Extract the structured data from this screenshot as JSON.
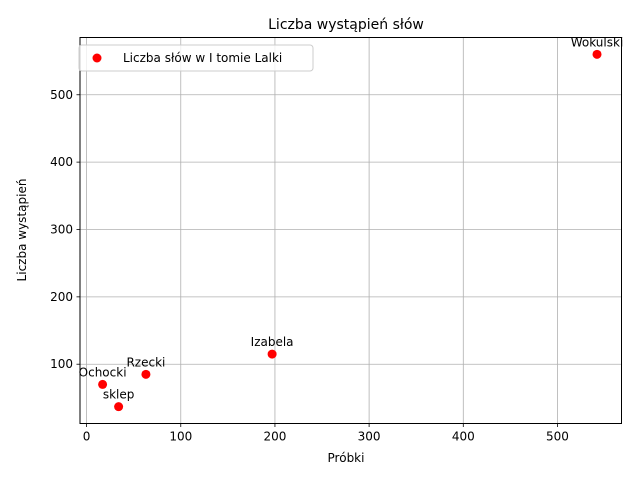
{
  "chart_data": {
    "type": "scatter",
    "title": "Liczba wystąpień słów",
    "xlabel": "Próbki",
    "ylabel": "Liczba wystąpień",
    "xlim": [
      -7,
      568
    ],
    "ylim": [
      12,
      585
    ],
    "xticks": [
      0,
      100,
      200,
      300,
      400,
      500
    ],
    "yticks": [
      100,
      200,
      300,
      400,
      500
    ],
    "grid": true,
    "legend_position": "top-left",
    "series": [
      {
        "name": "Liczba słów w I tomie Lalki",
        "color": "#ff0000",
        "points": [
          {
            "label": "Wokulski",
            "x": 542,
            "y": 560
          },
          {
            "label": "Izabela",
            "x": 197,
            "y": 115
          },
          {
            "label": "Rzecki",
            "x": 63,
            "y": 85
          },
          {
            "label": "Ochocki",
            "x": 17,
            "y": 70
          },
          {
            "label": "sklep",
            "x": 34,
            "y": 37
          }
        ]
      }
    ]
  }
}
